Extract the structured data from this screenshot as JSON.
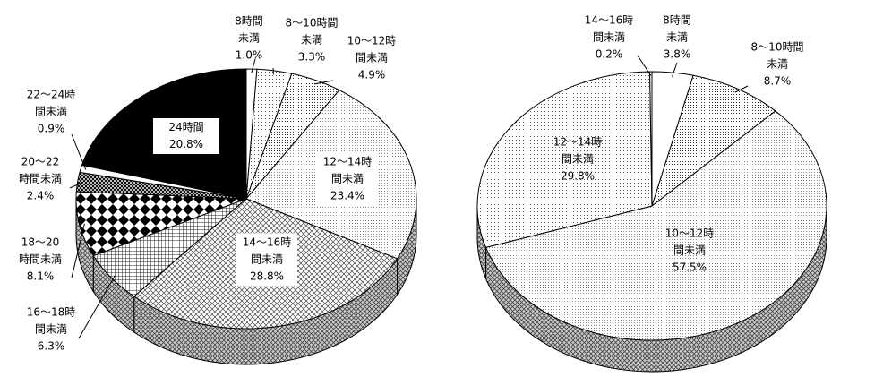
{
  "chart_data": [
    {
      "type": "pie",
      "categories": [
        "8時間未満",
        "8～10時間未満",
        "10～12時間未満",
        "12～14時間未満",
        "14～16時間未満",
        "16～18時間未満",
        "18～20時間未満",
        "20～22時間未満",
        "22～24時間未満",
        "24時間"
      ],
      "values": [
        1.0,
        3.3,
        4.9,
        23.4,
        28.8,
        6.3,
        8.1,
        2.4,
        0.9,
        20.8
      ],
      "value_labels": [
        "1.0%",
        "3.3%",
        "4.9%",
        "23.4%",
        "28.8%",
        "6.3%",
        "8.1%",
        "2.4%",
        "0.9%",
        "20.8%"
      ]
    },
    {
      "type": "pie",
      "categories": [
        "8時間未満",
        "8～10時間未満",
        "10～12時間未満",
        "12～14時間未満",
        "14～16時間未満"
      ],
      "values": [
        3.8,
        8.7,
        57.5,
        29.8,
        0.2
      ],
      "value_labels": [
        "3.8%",
        "8.7%",
        "57.5%",
        "29.8%",
        "0.2%"
      ]
    }
  ]
}
